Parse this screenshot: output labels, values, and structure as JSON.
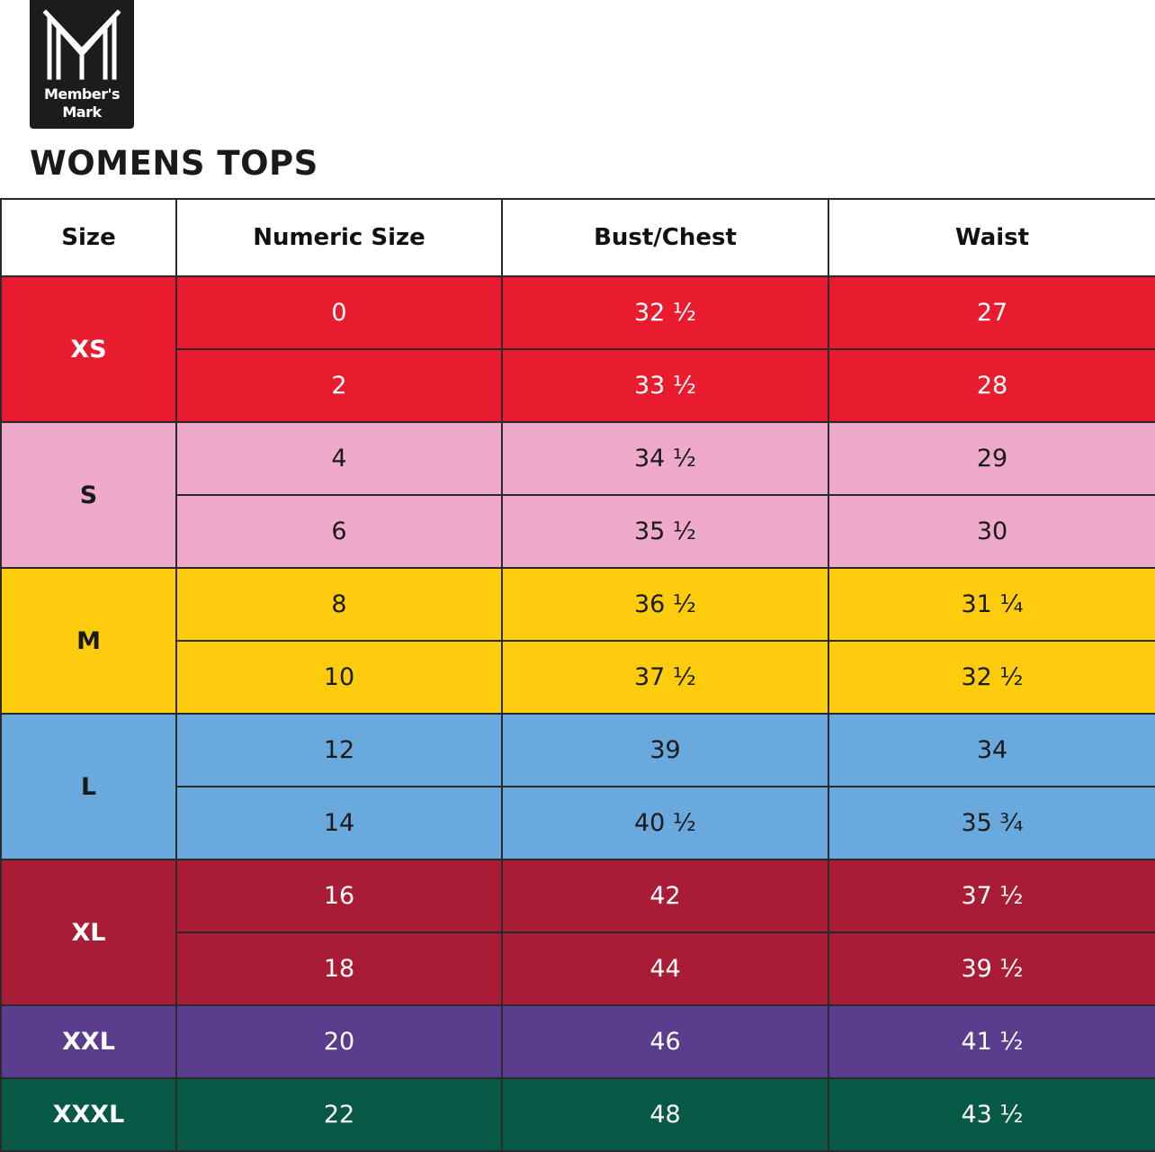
{
  "brand": {
    "line1": "Member's",
    "line2": "Mark"
  },
  "title": "WOMENS TOPS",
  "headers": [
    "Size",
    "Numeric Size",
    "Bust/Chest",
    "Waist"
  ],
  "colors": {
    "XS": "#e81b2f",
    "S": "#efa9cb",
    "M": "#fdcc0c",
    "L": "#6aa9de",
    "XL": "#a81c36",
    "XXL": "#5a3d8c",
    "XXXL": "#065a45"
  },
  "groups": [
    {
      "size": "XS",
      "rows": [
        {
          "numeric": "0",
          "bust": "32 ½",
          "waist": "27"
        },
        {
          "numeric": "2",
          "bust": "33 ½",
          "waist": "28"
        }
      ]
    },
    {
      "size": "S",
      "rows": [
        {
          "numeric": "4",
          "bust": "34 ½",
          "waist": "29"
        },
        {
          "numeric": "6",
          "bust": "35 ½",
          "waist": "30"
        }
      ]
    },
    {
      "size": "M",
      "rows": [
        {
          "numeric": "8",
          "bust": "36 ½",
          "waist": "31 ¼"
        },
        {
          "numeric": "10",
          "bust": "37 ½",
          "waist": "32 ½"
        }
      ]
    },
    {
      "size": "L",
      "rows": [
        {
          "numeric": "12",
          "bust": "39",
          "waist": "34"
        },
        {
          "numeric": "14",
          "bust": "40 ½",
          "waist": "35 ¾"
        }
      ]
    },
    {
      "size": "XL",
      "rows": [
        {
          "numeric": "16",
          "bust": "42",
          "waist": "37 ½"
        },
        {
          "numeric": "18",
          "bust": "44",
          "waist": "39 ½"
        }
      ]
    },
    {
      "size": "XXL",
      "rows": [
        {
          "numeric": "20",
          "bust": "46",
          "waist": "41 ½"
        }
      ]
    },
    {
      "size": "XXXL",
      "rows": [
        {
          "numeric": "22",
          "bust": "48",
          "waist": "43 ½"
        }
      ]
    }
  ]
}
